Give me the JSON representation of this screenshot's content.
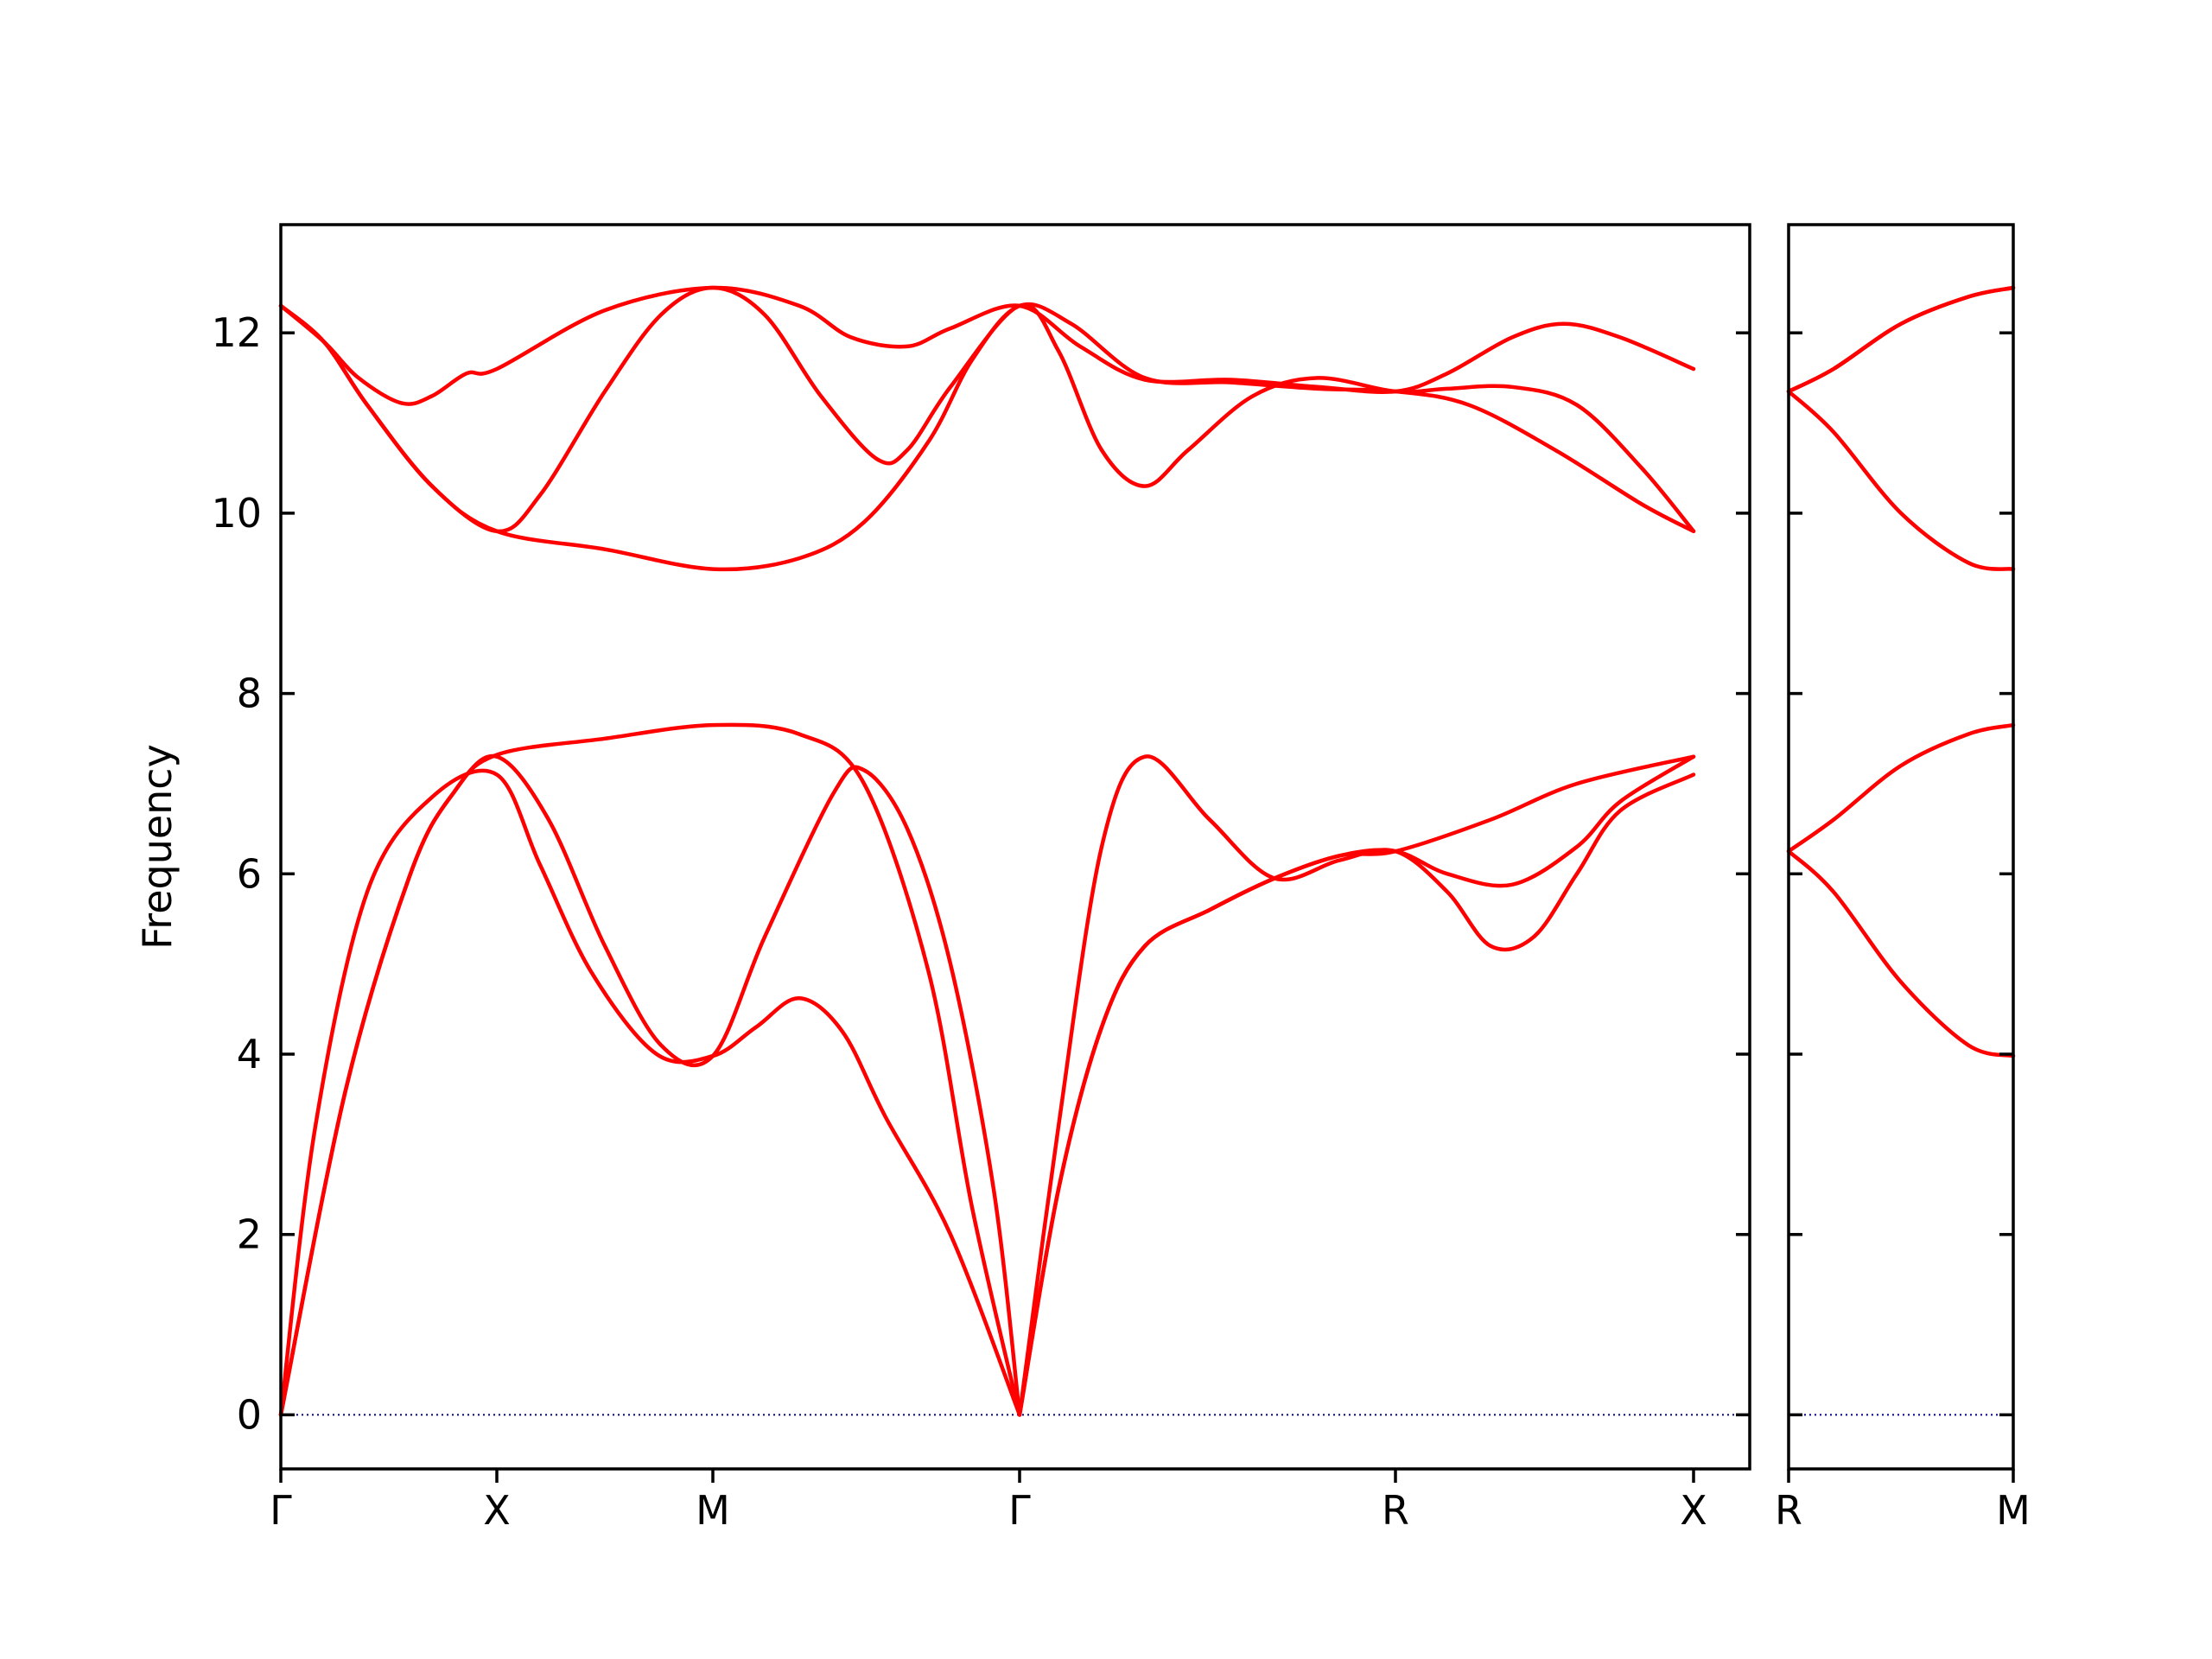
{
  "chart_data": {
    "type": "line",
    "title": "",
    "ylabel": "Frequency",
    "ylim": [
      -0.6,
      13.2
    ],
    "yticks": [
      0,
      2,
      4,
      6,
      8,
      10,
      12
    ],
    "ytick_labels": [
      "0",
      "2",
      "4",
      "6",
      "8",
      "10",
      "12"
    ],
    "grid": false,
    "colors": {
      "bands": "#ff0000",
      "zero_line": "#00008b"
    },
    "panels": [
      {
        "xlim": [
          0,
          3.4
        ],
        "xticks": [
          0,
          0.5,
          1.0,
          1.71,
          2.58,
          3.27
        ],
        "xtick_labels": [
          "Γ",
          "X",
          "M",
          "Γ",
          "R",
          "X"
        ],
        "series": [
          {
            "values": [
              [
                0,
                0
              ],
              [
                0.08,
                3.2
              ],
              [
                0.2,
                5.8
              ],
              [
                0.35,
                6.85
              ],
              [
                0.5,
                7.1
              ],
              [
                0.6,
                6.1
              ],
              [
                0.72,
                4.9
              ],
              [
                0.87,
                4.0
              ],
              [
                1.0,
                3.98
              ],
              [
                1.1,
                4.3
              ],
              [
                1.2,
                4.62
              ],
              [
                1.3,
                4.25
              ],
              [
                1.4,
                3.3
              ],
              [
                1.55,
                2.0
              ],
              [
                1.71,
                0
              ]
            ]
          },
          {
            "values": [
              [
                0,
                0
              ],
              [
                0.15,
                3.6
              ],
              [
                0.3,
                6.0
              ],
              [
                0.4,
                6.9
              ],
              [
                0.5,
                7.3
              ],
              [
                0.62,
                6.6
              ],
              [
                0.75,
                5.2
              ],
              [
                0.88,
                4.1
              ],
              [
                1.0,
                3.98
              ],
              [
                1.12,
                5.3
              ],
              [
                1.28,
                6.9
              ],
              [
                1.35,
                7.15
              ],
              [
                1.45,
                6.5
              ],
              [
                1.55,
                5.0
              ],
              [
                1.65,
                2.5
              ],
              [
                1.71,
                0
              ]
            ]
          },
          {
            "values": [
              [
                0,
                0
              ],
              [
                0.15,
                3.6
              ],
              [
                0.3,
                6.0
              ],
              [
                0.4,
                6.9
              ],
              [
                0.5,
                7.32
              ],
              [
                0.75,
                7.5
              ],
              [
                1.0,
                7.65
              ],
              [
                1.2,
                7.55
              ],
              [
                1.35,
                7.0
              ],
              [
                1.5,
                4.9
              ],
              [
                1.6,
                2.3
              ],
              [
                1.71,
                0
              ]
            ]
          },
          {
            "values": [
              [
                1.71,
                0
              ],
              [
                1.8,
                3.2
              ],
              [
                1.9,
                6.3
              ],
              [
                2.0,
                7.3
              ],
              [
                2.15,
                6.6
              ],
              [
                2.3,
                5.95
              ],
              [
                2.45,
                6.15
              ],
              [
                2.58,
                6.25
              ],
              [
                2.7,
                5.8
              ],
              [
                2.8,
                5.2
              ],
              [
                2.9,
                5.3
              ],
              [
                3.0,
                6.0
              ],
              [
                3.1,
                6.7
              ],
              [
                3.27,
                7.1
              ]
            ]
          },
          {
            "values": [
              [
                1.71,
                0
              ],
              [
                1.8,
                2.5
              ],
              [
                1.9,
                4.3
              ],
              [
                2.0,
                5.2
              ],
              [
                2.15,
                5.6
              ],
              [
                2.3,
                5.95
              ],
              [
                2.45,
                6.2
              ],
              [
                2.58,
                6.25
              ],
              [
                2.7,
                6.0
              ],
              [
                2.85,
                5.88
              ],
              [
                3.0,
                6.3
              ],
              [
                3.1,
                6.8
              ],
              [
                3.27,
                7.3
              ]
            ]
          },
          {
            "values": [
              [
                1.71,
                0
              ],
              [
                1.8,
                2.5
              ],
              [
                1.9,
                4.3
              ],
              [
                2.0,
                5.2
              ],
              [
                2.15,
                5.6
              ],
              [
                2.3,
                5.95
              ],
              [
                2.45,
                6.2
              ],
              [
                2.58,
                6.25
              ],
              [
                2.8,
                6.6
              ],
              [
                3.0,
                7.0
              ],
              [
                3.27,
                7.3
              ]
            ]
          },
          {
            "values": [
              [
                0,
                12.3
              ],
              [
                0.1,
                11.9
              ],
              [
                0.18,
                11.5
              ],
              [
                0.28,
                11.22
              ],
              [
                0.35,
                11.3
              ],
              [
                0.43,
                11.55
              ],
              [
                0.5,
                11.6
              ],
              [
                0.75,
                12.25
              ],
              [
                1.0,
                12.5
              ],
              [
                1.2,
                12.3
              ],
              [
                1.32,
                11.95
              ],
              [
                1.45,
                11.85
              ],
              [
                1.55,
                12.05
              ],
              [
                1.71,
                12.3
              ],
              [
                1.85,
                11.85
              ],
              [
                2.0,
                11.48
              ],
              [
                2.2,
                11.48
              ],
              [
                2.4,
                11.4
              ],
              [
                2.58,
                11.35
              ],
              [
                2.7,
                11.55
              ],
              [
                2.85,
                11.95
              ],
              [
                2.97,
                12.1
              ],
              [
                3.1,
                11.95
              ],
              [
                3.27,
                11.6
              ]
            ]
          },
          {
            "values": [
              [
                0,
                12.3
              ],
              [
                0.1,
                11.9
              ],
              [
                0.2,
                11.2
              ],
              [
                0.35,
                10.3
              ],
              [
                0.5,
                9.8
              ],
              [
                0.6,
                10.2
              ],
              [
                0.75,
                11.35
              ],
              [
                0.88,
                12.2
              ],
              [
                1.0,
                12.5
              ],
              [
                1.12,
                12.2
              ],
              [
                1.25,
                11.3
              ],
              [
                1.38,
                10.6
              ],
              [
                1.45,
                10.7
              ],
              [
                1.55,
                11.4
              ],
              [
                1.71,
                12.3
              ],
              [
                1.8,
                11.8
              ],
              [
                1.9,
                10.7
              ],
              [
                2.0,
                10.3
              ],
              [
                2.1,
                10.7
              ],
              [
                2.25,
                11.3
              ],
              [
                2.4,
                11.5
              ],
              [
                2.58,
                11.35
              ],
              [
                2.7,
                11.38
              ],
              [
                2.85,
                11.4
              ],
              [
                3.0,
                11.2
              ],
              [
                3.15,
                10.5
              ],
              [
                3.27,
                9.8
              ]
            ]
          },
          {
            "values": [
              [
                0,
                12.3
              ],
              [
                0.1,
                11.9
              ],
              [
                0.2,
                11.2
              ],
              [
                0.35,
                10.3
              ],
              [
                0.5,
                9.8
              ],
              [
                0.75,
                9.6
              ],
              [
                1.0,
                9.38
              ],
              [
                1.2,
                9.5
              ],
              [
                1.35,
                9.9
              ],
              [
                1.5,
                10.8
              ],
              [
                1.6,
                11.7
              ],
              [
                1.71,
                12.3
              ],
              [
                1.83,
                12.1
              ],
              [
                2.0,
                11.5
              ],
              [
                2.2,
                11.45
              ],
              [
                2.4,
                11.38
              ],
              [
                2.58,
                11.35
              ],
              [
                2.75,
                11.2
              ],
              [
                2.95,
                10.7
              ],
              [
                3.15,
                10.1
              ],
              [
                3.27,
                9.8
              ]
            ]
          }
        ]
      },
      {
        "xlim": [
          0,
          0.5
        ],
        "xticks": [
          0,
          0.5
        ],
        "xtick_labels": [
          "R",
          "M"
        ],
        "series": [
          {
            "values": [
              [
                0,
                6.25
              ],
              [
                0.1,
                5.8
              ],
              [
                0.25,
                4.8
              ],
              [
                0.4,
                4.1
              ],
              [
                0.5,
                3.98
              ]
            ]
          },
          {
            "values": [
              [
                0,
                6.25
              ],
              [
                0.1,
                6.6
              ],
              [
                0.25,
                7.2
              ],
              [
                0.4,
                7.55
              ],
              [
                0.5,
                7.65
              ]
            ]
          },
          {
            "values": [
              [
                0,
                11.35
              ],
              [
                0.1,
                10.9
              ],
              [
                0.25,
                10.0
              ],
              [
                0.4,
                9.45
              ],
              [
                0.5,
                9.38
              ]
            ]
          },
          {
            "values": [
              [
                0,
                11.35
              ],
              [
                0.1,
                11.6
              ],
              [
                0.25,
                12.1
              ],
              [
                0.4,
                12.4
              ],
              [
                0.5,
                12.5
              ]
            ]
          },
          {
            "values": [
              [
                0,
                11.35
              ],
              [
                0.1,
                11.6
              ],
              [
                0.25,
                12.1
              ],
              [
                0.4,
                12.4
              ],
              [
                0.5,
                12.5
              ]
            ]
          }
        ]
      }
    ]
  }
}
